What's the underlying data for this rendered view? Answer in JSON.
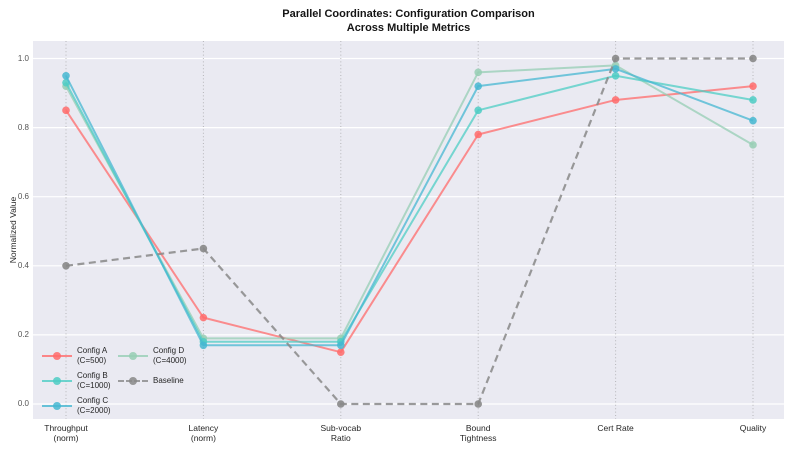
{
  "chart_data": {
    "type": "line",
    "variant": "parallel-coordinates",
    "title": "Parallel Coordinates: Configuration Comparison\nAcross Multiple Metrics",
    "title_lines": [
      "Parallel Coordinates: Configuration Comparison",
      "Across Multiple Metrics"
    ],
    "ylabel": "Normalized Value",
    "xlabel": "",
    "ylim": [
      -0.05,
      1.05
    ],
    "y_ticks": [
      0.0,
      0.2,
      0.4,
      0.6,
      0.8,
      1.0
    ],
    "grid": true,
    "legend_position": "lower left",
    "categories": [
      "Throughput\n(norm)",
      "Latency\n(norm)",
      "Sub-vocab\nRatio",
      "Bound\nTightness",
      "Cert Rate",
      "Quality"
    ],
    "series": [
      {
        "name": "Config A\n(C=500)",
        "color": "#FF6B6B",
        "style": "solid",
        "values": [
          0.85,
          0.25,
          0.15,
          0.78,
          0.88,
          0.92
        ]
      },
      {
        "name": "Config B\n(C=1000)",
        "color": "#4ECDC4",
        "style": "solid",
        "values": [
          0.93,
          0.18,
          0.18,
          0.85,
          0.95,
          0.88
        ]
      },
      {
        "name": "Config C\n(C=2000)",
        "color": "#45B7D1",
        "style": "solid",
        "values": [
          0.95,
          0.17,
          0.17,
          0.92,
          0.97,
          0.82
        ]
      },
      {
        "name": "Config D\n(C=4000)",
        "color": "#96CEB4",
        "style": "solid",
        "values": [
          0.92,
          0.19,
          0.19,
          0.96,
          0.98,
          0.75
        ]
      },
      {
        "name": "Baseline",
        "color": "#888888",
        "style": "dashed",
        "values": [
          0.4,
          0.45,
          0.0,
          0.0,
          1.0,
          1.0
        ]
      }
    ]
  },
  "colors": {
    "figure_background": "#ffffff",
    "axes_background": "#eaeaf2",
    "gridline": "#ffffff",
    "axis_dotted_line": "#8a8a8a",
    "title_text": "#151515",
    "tick_text": "#555555",
    "label_text": "#262626"
  }
}
